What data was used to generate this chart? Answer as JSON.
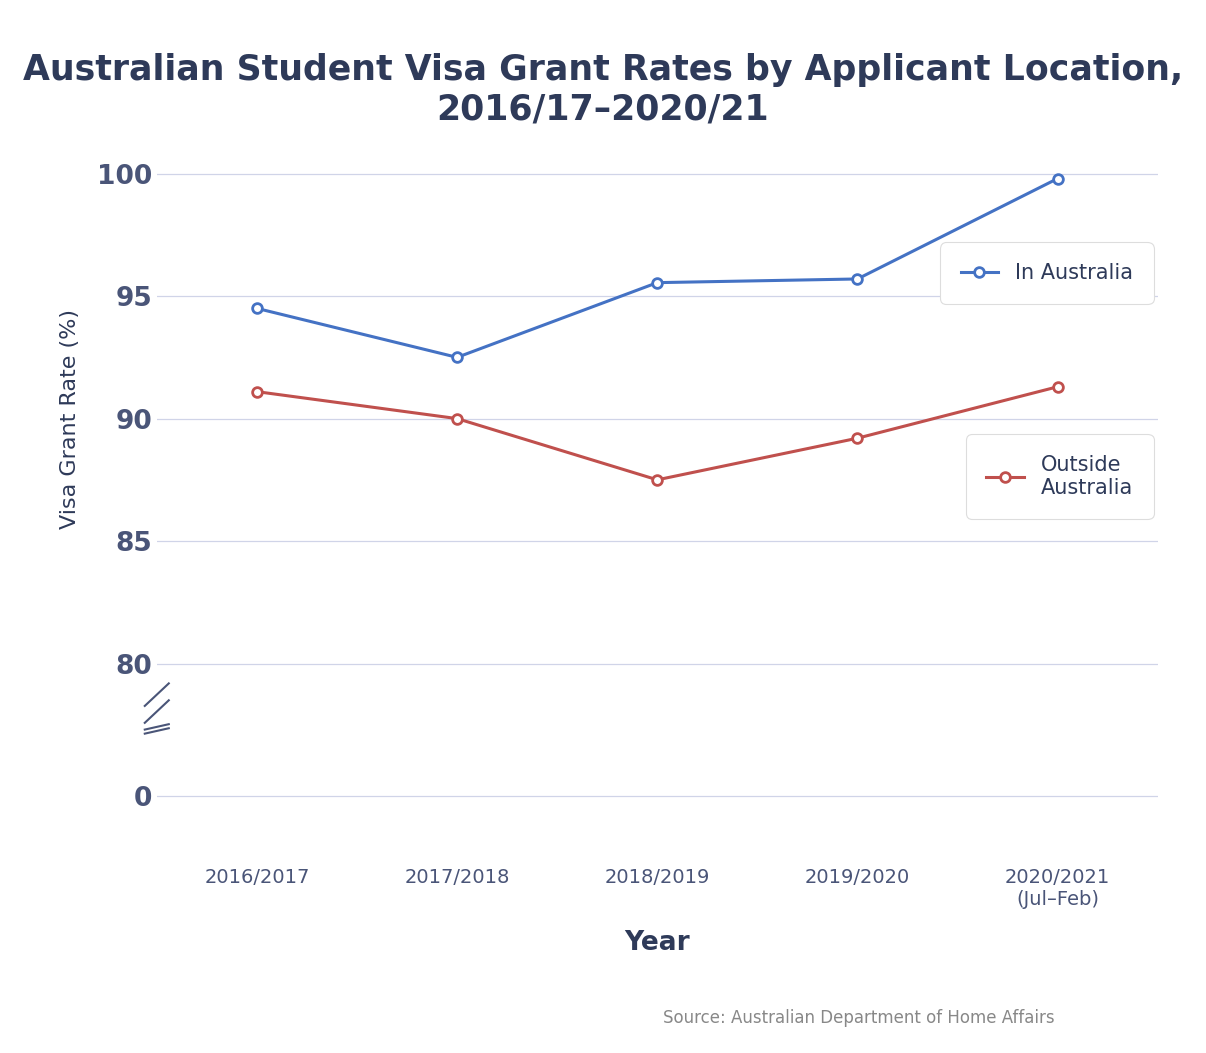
{
  "title": "Australian Student Visa Grant Rates by Applicant Location,\n2016/17–2020/21",
  "xlabel": "Year",
  "ylabel": "Visa Grant Rate (%)",
  "x_labels": [
    "2016/2017",
    "2017/2018",
    "2018/2019",
    "2019/2020",
    "2020/2021\n(Jul–Feb)"
  ],
  "in_australia": [
    94.5,
    92.5,
    95.55,
    95.7,
    99.8
  ],
  "outside_australia": [
    91.1,
    90.0,
    87.5,
    89.2,
    91.3
  ],
  "line_color_in": "#4472C4",
  "line_color_out": "#C0504D",
  "marker_style": "o",
  "marker_size": 7,
  "background_color": "#FFFFFF",
  "grid_color": "#D0D4E8",
  "title_color": "#2E3A59",
  "axis_label_color": "#2E3A59",
  "tick_color": "#4A5578",
  "source_text": "Source: Australian Department of Home Affairs",
  "yticks_upper": [
    80,
    85,
    90,
    95,
    100
  ],
  "ylim_upper": [
    78.5,
    101.5
  ],
  "ylim_lower": [
    -1.5,
    1.5
  ],
  "legend_in": "In Australia",
  "legend_out": "Outside\nAustralia"
}
